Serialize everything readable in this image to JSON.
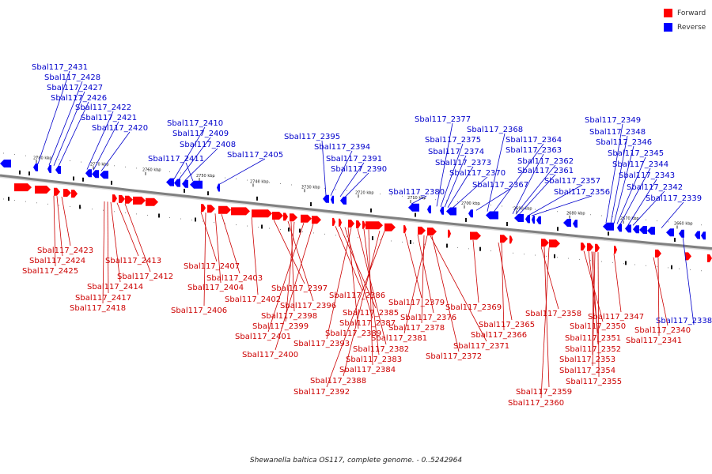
{
  "legend": {
    "forward_label": "Forward",
    "reverse_label": "Reverse",
    "forward_color": "#ff0000",
    "reverse_color": "#0000ff"
  },
  "caption": "Shewanella baltica OS117, complete genome. - 0..5242964",
  "colors": {
    "forward": "#ff0000",
    "reverse": "#0000ff",
    "axis": "#808080",
    "forward_label": "#cc0000",
    "reverse_label": "#0000cc"
  },
  "tick_labels": [
    "2780 kbp",
    "2770 kbp",
    "2760 kbp",
    "2750 kbp",
    "2740 kbp",
    "2730 kbp",
    "2720 kbp",
    "2710 kbp",
    "2700 kbp",
    "2690 kbp",
    "2680 kbp",
    "2670 kbp",
    "2660 kbp"
  ],
  "reverse_genes": [
    "Sbal117_2431",
    "Sbal117_2428",
    "Sbal117_2427",
    "Sbal117_2426",
    "Sbal117_2422",
    "Sbal117_2421",
    "Sbal117_2420",
    "Sbal117_2410",
    "Sbal117_2409",
    "Sbal117_2408",
    "Sbal117_2411",
    "Sbal117_2405",
    "Sbal117_2395",
    "Sbal117_2394",
    "Sbal117_2391",
    "Sbal117_2390",
    "Sbal117_2377",
    "Sbal117_2375",
    "Sbal117_2374",
    "Sbal117_2373",
    "Sbal117_2370",
    "Sbal117_2380",
    "Sbal117_2367",
    "Sbal117_2368",
    "Sbal117_2364",
    "Sbal117_2363",
    "Sbal117_2362",
    "Sbal117_2361",
    "Sbal117_2357",
    "Sbal117_2356",
    "Sbal117_2349",
    "Sbal117_2348",
    "Sbal117_2346",
    "Sbal117_2345",
    "Sbal117_2344",
    "Sbal117_2343",
    "Sbal117_2342",
    "Sbal117_2339",
    "Sbal117_2338"
  ],
  "forward_genes": [
    "Sbal117_2423",
    "Sbal117_2424",
    "Sbal117_2425",
    "Sbal117_2413",
    "Sbal117_2412",
    "Sbal117_2414",
    "Sbal117_2417",
    "Sbal117_2418",
    "Sbal117_2407",
    "Sbal117_2403",
    "Sbal117_2404",
    "Sbal117_2402",
    "Sbal117_2406",
    "Sbal117_2397",
    "Sbal117_2396",
    "Sbal117_2398",
    "Sbal117_2399",
    "Sbal117_2401",
    "Sbal117_2400",
    "Sbal117_2386",
    "Sbal117_2385",
    "Sbal117_2387",
    "Sbal117_2389",
    "Sbal117_2393",
    "Sbal117_2382",
    "Sbal117_2383",
    "Sbal117_2384",
    "Sbal117_2388",
    "Sbal117_2392",
    "Sbal117_2379",
    "Sbal117_2376",
    "Sbal117_2378",
    "Sbal117_2381",
    "Sbal117_2371",
    "Sbal117_2372",
    "Sbal117_2369",
    "Sbal117_2365",
    "Sbal117_2366",
    "Sbal117_2358",
    "Sbal117_2359",
    "Sbal117_2360",
    "Sbal117_2347",
    "Sbal117_2350",
    "Sbal117_2351",
    "Sbal117_2352",
    "Sbal117_2353",
    "Sbal117_2354",
    "Sbal117_2355",
    "Sbal117_2340",
    "Sbal117_2341"
  ]
}
